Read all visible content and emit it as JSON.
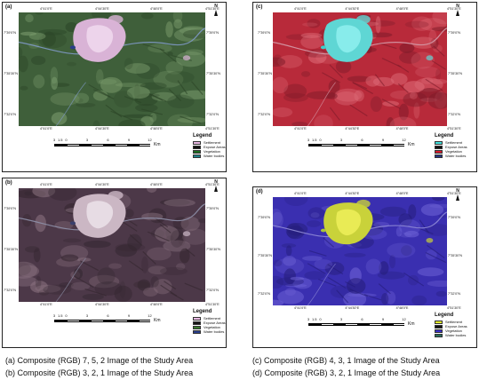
{
  "panels": [
    {
      "letter": "(a)",
      "colors": {
        "base": "#3f5f3a",
        "dark": "#2b4527",
        "light": "#7a9b6c",
        "town": "#d9b3d6",
        "town_core": "#f0d9ef",
        "river": "#7f99c7",
        "water": "#2a3d8a"
      },
      "top_ticks": [
        "4°41'0\"E",
        "4°44'30\"E",
        "4°48'0\"E",
        "4°51'30\"E"
      ],
      "bottom_ticks": [
        "4°41'0\"E",
        "4°44'30\"E",
        "4°48'0\"E",
        "4°51'30\"E"
      ],
      "left_ticks": [
        "7°39'0\"N",
        "7°35'30\"N",
        "7°32'0\"N"
      ],
      "right_ticks": [
        "7°39'0\"N",
        "7°35'30\"N",
        "7°32'0\"N"
      ],
      "north": "N",
      "scale_labels": [
        "3",
        "1.5",
        "0",
        "3",
        "6",
        "9",
        "12"
      ],
      "scale_unit": "Km",
      "legend_title": "Legend",
      "legend": [
        {
          "label": "Settlement",
          "color": "#e7b7e3"
        },
        {
          "label": "Expose Areas",
          "color": "#111111"
        },
        {
          "label": "Vegetation",
          "color": "#1b6b1e"
        },
        {
          "label": "Water bodies",
          "color": "#1f7f86"
        }
      ]
    },
    {
      "letter": "(b)",
      "colors": {
        "base": "#4c3848",
        "dark": "#33262f",
        "light": "#8c7482",
        "town": "#cbb7c4",
        "town_core": "#ece3ea",
        "river": "#8e90a8",
        "water": "#3a3f6c"
      },
      "top_ticks": [
        "4°41'0\"E",
        "4°44'30\"E",
        "4°48'0\"E",
        "4°51'30\"E"
      ],
      "bottom_ticks": [
        "4°41'0\"E",
        "4°44'30\"E",
        "4°48'0\"E",
        "4°51'30\"E"
      ],
      "left_ticks": [
        "7°39'0\"N",
        "7°35'30\"N",
        "7°32'0\"N"
      ],
      "right_ticks": [
        "7°39'0\"N",
        "7°35'30\"N",
        "7°32'0\"N"
      ],
      "north": "N",
      "scale_labels": [
        "3",
        "1.5",
        "0",
        "3",
        "6",
        "9",
        "12"
      ],
      "scale_unit": "Km",
      "legend_title": "Legend",
      "legend": [
        {
          "label": "Settlement",
          "color": "#e9b9e3"
        },
        {
          "label": "Expose Areas",
          "color": "#151515"
        },
        {
          "label": "Vegetation",
          "color": "#3a7a2f"
        },
        {
          "label": "Water bodies",
          "color": "#2a3f8c"
        }
      ]
    },
    {
      "letter": "(c)",
      "colors": {
        "base": "#b82a3a",
        "dark": "#7e1b29",
        "light": "#dd6a76",
        "town": "#5fd6d4",
        "town_core": "#8ff0ee",
        "river": "#d49aa8",
        "water": "#3ad0cc"
      },
      "top_ticks": [
        "4°41'0\"E",
        "4°44'30\"E",
        "4°48'0\"E",
        "4°51'30\"E"
      ],
      "bottom_ticks": [
        "4°41'0\"E",
        "4°44'30\"E",
        "4°48'0\"E",
        "4°51'30\"E"
      ],
      "left_ticks": [
        "7°39'0\"N",
        "7°35'30\"N",
        "7°32'0\"N"
      ],
      "right_ticks": [
        "7°39'0\"N",
        "7°35'30\"N",
        "7°32'0\"N"
      ],
      "north": "N",
      "scale_labels": [
        "3",
        "1.5",
        "0",
        "3",
        "6",
        "9",
        "12"
      ],
      "scale_unit": "Km",
      "legend_title": "Legend",
      "legend": [
        {
          "label": "Settlement",
          "color": "#3fe0dc"
        },
        {
          "label": "Expose Areas",
          "color": "#111111"
        },
        {
          "label": "Vegetation",
          "color": "#d8192c"
        },
        {
          "label": "Water bodies",
          "color": "#26357f"
        }
      ]
    },
    {
      "letter": "(d)",
      "colors": {
        "base": "#3a2fb0",
        "dark": "#251d7a",
        "light": "#6e63d6",
        "town": "#c9d23a",
        "town_core": "#eef05a",
        "river": "#8f8ad6",
        "water": "#a9c43a"
      },
      "top_ticks": [
        "4°41'0\"E",
        "4°44'30\"E",
        "4°48'0\"E",
        "4°51'30\"E"
      ],
      "bottom_ticks": [
        "4°41'0\"E",
        "4°44'30\"E",
        "4°48'0\"E",
        "4°51'30\"E"
      ],
      "left_ticks": [
        "7°39'0\"N",
        "7°35'30\"N",
        "7°32'0\"N"
      ],
      "right_ticks": [
        "7°39'0\"N",
        "7°35'30\"N",
        "7°32'0\"N"
      ],
      "north": "N",
      "scale_labels": [
        "3",
        "1.5",
        "0",
        "3",
        "6",
        "9",
        "12"
      ],
      "scale_unit": "Km",
      "legend_title": "Legend",
      "legend": [
        {
          "label": "Settlement",
          "color": "#e1ea2a"
        },
        {
          "label": "Expose Areas",
          "color": "#111111"
        },
        {
          "label": "Vegetation",
          "color": "#3a2fc8"
        },
        {
          "label": "Water bodies",
          "color": "#2b6d5a"
        }
      ]
    }
  ],
  "captions": [
    "(a) Composite (RGB) 7, 5, 2 Image of the Study Area",
    "(b) Composite (RGB) 3, 2, 1 Image of the Study Area",
    "(c) Composite (RGB) 4, 3, 1 Image of the Study Area",
    "(d) Composite (RGB) 3, 2, 1 Image of the Study Area"
  ]
}
